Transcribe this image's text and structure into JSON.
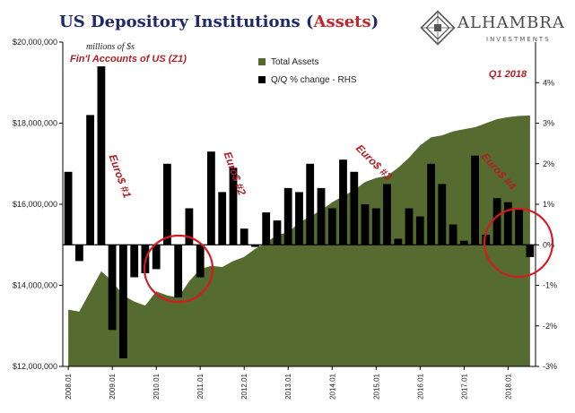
{
  "header": {
    "title_main": "US Depository Institutions (",
    "title_highlight": "Assets",
    "title_end": ")",
    "units_note": "millions of $s",
    "source_note": "Fin'l Accounts of US (Z1)"
  },
  "logo": {
    "name": "ALHAMBRA",
    "subtitle": "INVESTMENTS",
    "icon": "geometric-diamond-icon"
  },
  "colors": {
    "area": "#556b2f",
    "bars": "#000000",
    "annotation_red": "#b01f24",
    "title_blue": "#1f2a6b"
  },
  "chart_data": {
    "type": "area+bar",
    "title": "US Depository Institutions (Assets)",
    "x": [
      "2008.01",
      "2008.02",
      "2008.03",
      "2008.04",
      "2009.01",
      "2009.02",
      "2009.03",
      "2009.04",
      "2010.01",
      "2010.02",
      "2010.03",
      "2010.04",
      "2011.01",
      "2011.02",
      "2011.03",
      "2011.04",
      "2012.01",
      "2012.02",
      "2012.03",
      "2012.04",
      "2013.01",
      "2013.02",
      "2013.03",
      "2013.04",
      "2014.01",
      "2014.02",
      "2014.03",
      "2014.04",
      "2015.01",
      "2015.02",
      "2015.03",
      "2015.04",
      "2016.01",
      "2016.02",
      "2016.03",
      "2016.04",
      "2017.01",
      "2017.02",
      "2017.03",
      "2017.04",
      "2018.01",
      "2018.02",
      "2018.03"
    ],
    "x_tick_labels": [
      "2008.01",
      "2009.01",
      "2010.01",
      "2011.01",
      "2012.01",
      "2013.01",
      "2014.01",
      "2015.01",
      "2016.01",
      "2017.01",
      "2018.01"
    ],
    "series": [
      {
        "name": "Total Assets",
        "type": "area",
        "axis": "left",
        "values": [
          13400000,
          13350000,
          13850000,
          14350000,
          14100000,
          13750000,
          13600000,
          13500000,
          13850000,
          13750000,
          13700000,
          14100000,
          14400000,
          14480000,
          14450000,
          14600000,
          14700000,
          14900000,
          15050000,
          15250000,
          15300000,
          15550000,
          15700000,
          15850000,
          16050000,
          16200000,
          16350000,
          16550000,
          16650000,
          16700000,
          16900000,
          17150000,
          17450000,
          17650000,
          17700000,
          17800000,
          17850000,
          17900000,
          18000000,
          18100000,
          18150000,
          18180000,
          18190000
        ]
      },
      {
        "name": "Q/Q % change - RHS",
        "type": "bar",
        "axis": "right",
        "values": [
          1.8,
          -0.4,
          3.2,
          4.4,
          -2.1,
          -2.8,
          -0.8,
          -0.7,
          -0.6,
          2.0,
          -1.3,
          0.9,
          -0.8,
          2.3,
          1.3,
          1.9,
          0.4,
          -0.05,
          0.8,
          0.6,
          1.4,
          1.3,
          2.0,
          1.4,
          0.9,
          2.1,
          1.8,
          1.0,
          0.9,
          1.5,
          0.15,
          0.9,
          0.7,
          2.0,
          1.5,
          0.5,
          0.1,
          2.2,
          0.25,
          1.15,
          1.05,
          0.9,
          -0.3
        ]
      }
    ],
    "left_axis": {
      "ylim": [
        12000000,
        20000000
      ],
      "ticks": [
        "$12,000,000",
        "$14,000,000",
        "$16,000,000",
        "$18,000,000",
        "$20,000,000"
      ]
    },
    "right_axis": {
      "ylim": [
        -3,
        5
      ],
      "ticks": [
        "-3%",
        "-2%",
        "-1%",
        "0%",
        "1%",
        "2%",
        "3%",
        "4%"
      ]
    },
    "annotations": [
      "Euro$ #1",
      "Euro$ #2",
      "Euro$ #3",
      "Euro$ #4",
      "Q1 2018"
    ],
    "legend": [
      "Total Assets",
      "Q/Q % change - RHS"
    ],
    "grid": false
  }
}
